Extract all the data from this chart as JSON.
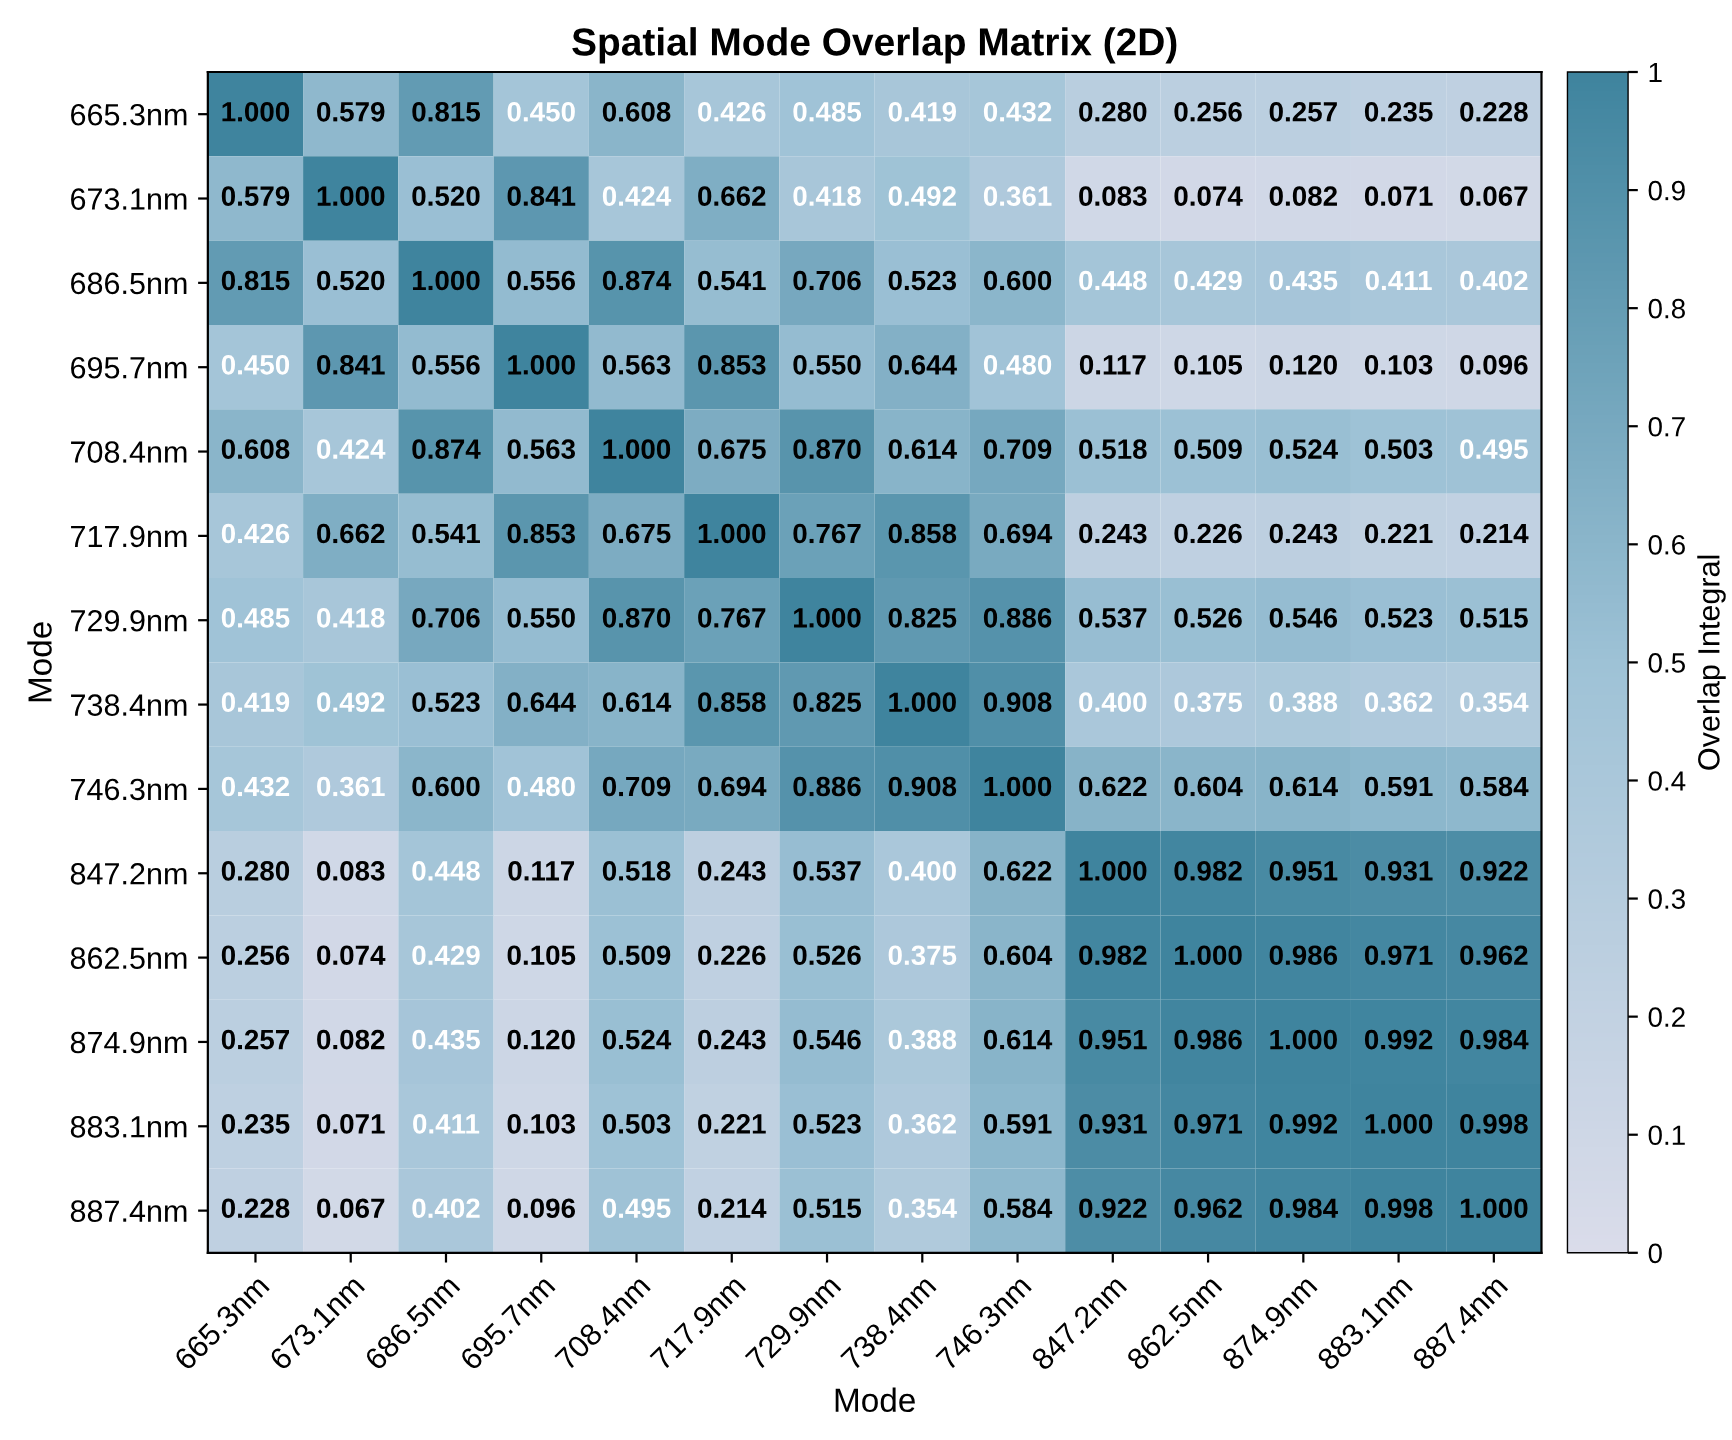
{
  "chart_data": {
    "type": "heatmap",
    "title": "Spatial Mode Overlap Matrix (2D)",
    "xlabel": "Mode",
    "ylabel": "Mode",
    "clabel": "Overlap Integral",
    "categories": [
      "665.3nm",
      "673.1nm",
      "686.5nm",
      "695.7nm",
      "708.4nm",
      "717.9nm",
      "729.9nm",
      "738.4nm",
      "746.3nm",
      "847.2nm",
      "862.5nm",
      "874.9nm",
      "883.1nm",
      "887.4nm"
    ],
    "y_categories": [
      "665.3nm",
      "673.1nm",
      "686.5nm",
      "695.7nm",
      "708.4nm",
      "717.9nm",
      "729.9nm",
      "738.4nm",
      "746.3nm",
      "847.2nm",
      "862.5nm",
      "874.9nm",
      "883.1nm",
      "887.4nm"
    ],
    "cells": [
      [
        1.0,
        0.579,
        0.815,
        0.45,
        0.608,
        0.426,
        0.485,
        0.419,
        0.432,
        0.28,
        0.256,
        0.257,
        0.235,
        0.228
      ],
      [
        0.579,
        1.0,
        0.52,
        0.841,
        0.424,
        0.662,
        0.418,
        0.492,
        0.361,
        0.083,
        0.074,
        0.082,
        0.071,
        0.067
      ],
      [
        0.815,
        0.52,
        1.0,
        0.556,
        0.874,
        0.541,
        0.706,
        0.523,
        0.6,
        0.448,
        0.429,
        0.435,
        0.411,
        0.402
      ],
      [
        0.45,
        0.841,
        0.556,
        1.0,
        0.563,
        0.853,
        0.55,
        0.644,
        0.48,
        0.117,
        0.105,
        0.12,
        0.103,
        0.096
      ],
      [
        0.608,
        0.424,
        0.874,
        0.563,
        1.0,
        0.675,
        0.87,
        0.614,
        0.709,
        0.518,
        0.509,
        0.524,
        0.503,
        0.495
      ],
      [
        0.426,
        0.662,
        0.541,
        0.853,
        0.675,
        1.0,
        0.767,
        0.858,
        0.694,
        0.243,
        0.226,
        0.243,
        0.221,
        0.214
      ],
      [
        0.485,
        0.418,
        0.706,
        0.55,
        0.87,
        0.767,
        1.0,
        0.825,
        0.886,
        0.537,
        0.526,
        0.546,
        0.523,
        0.515
      ],
      [
        0.419,
        0.492,
        0.523,
        0.644,
        0.614,
        0.858,
        0.825,
        1.0,
        0.908,
        0.4,
        0.375,
        0.388,
        0.362,
        0.354
      ],
      [
        0.432,
        0.361,
        0.6,
        0.48,
        0.709,
        0.694,
        0.886,
        0.908,
        1.0,
        0.622,
        0.604,
        0.614,
        0.591,
        0.584
      ],
      [
        0.28,
        0.083,
        0.448,
        0.117,
        0.518,
        0.243,
        0.537,
        0.4,
        0.622,
        1.0,
        0.982,
        0.951,
        0.931,
        0.922
      ],
      [
        0.256,
        0.074,
        0.429,
        0.105,
        0.509,
        0.226,
        0.526,
        0.375,
        0.604,
        0.982,
        1.0,
        0.986,
        0.971,
        0.962
      ],
      [
        0.257,
        0.082,
        0.435,
        0.12,
        0.524,
        0.243,
        0.546,
        0.388,
        0.614,
        0.951,
        0.986,
        1.0,
        0.992,
        0.984
      ],
      [
        0.235,
        0.071,
        0.411,
        0.103,
        0.503,
        0.221,
        0.523,
        0.362,
        0.591,
        0.931,
        0.971,
        0.992,
        1.0,
        0.998
      ],
      [
        0.228,
        0.067,
        0.402,
        0.096,
        0.495,
        0.214,
        0.515,
        0.354,
        0.584,
        0.922,
        0.962,
        0.984,
        0.998,
        1.0
      ]
    ],
    "cell_labels": [
      [
        "1.000",
        "0.579",
        "0.815",
        "0.450",
        "0.608",
        "0.426",
        "0.485",
        "0.419",
        "0.432",
        "0.280",
        "0.256",
        "0.257",
        "0.235",
        "0.228"
      ],
      [
        "0.579",
        "1.000",
        "0.520",
        "0.841",
        "0.424",
        "0.662",
        "0.418",
        "0.492",
        "0.361",
        "0.083",
        "0.074",
        "0.082",
        "0.071",
        "0.067"
      ],
      [
        "0.815",
        "0.520",
        "1.000",
        "0.556",
        "0.874",
        "0.541",
        "0.706",
        "0.523",
        "0.600",
        "0.448",
        "0.429",
        "0.435",
        "0.411",
        "0.402"
      ],
      [
        "0.450",
        "0.841",
        "0.556",
        "1.000",
        "0.563",
        "0.853",
        "0.550",
        "0.644",
        "0.480",
        "0.117",
        "0.105",
        "0.120",
        "0.103",
        "0.096"
      ],
      [
        "0.608",
        "0.424",
        "0.874",
        "0.563",
        "1.000",
        "0.675",
        "0.870",
        "0.614",
        "0.709",
        "0.518",
        "0.509",
        "0.524",
        "0.503",
        "0.495"
      ],
      [
        "0.426",
        "0.662",
        "0.541",
        "0.853",
        "0.675",
        "1.000",
        "0.767",
        "0.858",
        "0.694",
        "0.243",
        "0.226",
        "0.243",
        "0.221",
        "0.214"
      ],
      [
        "0.485",
        "0.418",
        "0.706",
        "0.550",
        "0.870",
        "0.767",
        "1.000",
        "0.825",
        "0.886",
        "0.537",
        "0.526",
        "0.546",
        "0.523",
        "0.515"
      ],
      [
        "0.419",
        "0.492",
        "0.523",
        "0.644",
        "0.614",
        "0.858",
        "0.825",
        "1.000",
        "0.908",
        "0.400",
        "0.375",
        "0.388",
        "0.362",
        "0.354"
      ],
      [
        "0.432",
        "0.361",
        "0.600",
        "0.480",
        "0.709",
        "0.694",
        "0.886",
        "0.908",
        "1.000",
        "0.622",
        "0.604",
        "0.614",
        "0.591",
        "0.584"
      ],
      [
        "0.280",
        "0.083",
        "0.448",
        "0.117",
        "0.518",
        "0.243",
        "0.537",
        "0.400",
        "0.622",
        "1.000",
        "0.982",
        "0.951",
        "0.931",
        "0.922"
      ],
      [
        "0.256",
        "0.074",
        "0.429",
        "0.105",
        "0.509",
        "0.226",
        "0.526",
        "0.375",
        "0.604",
        "0.982",
        "1.000",
        "0.986",
        "0.971",
        "0.962"
      ],
      [
        "0.257",
        "0.082",
        "0.435",
        "0.120",
        "0.524",
        "0.243",
        "0.546",
        "0.388",
        "0.614",
        "0.951",
        "0.986",
        "1.000",
        "0.992",
        "0.984"
      ],
      [
        "0.235",
        "0.071",
        "0.411",
        "0.103",
        "0.503",
        "0.221",
        "0.523",
        "0.362",
        "0.591",
        "0.931",
        "0.971",
        "0.992",
        "1.000",
        "0.998"
      ],
      [
        "0.228",
        "0.067",
        "0.402",
        "0.096",
        "0.495",
        "0.214",
        "0.515",
        "0.354",
        "0.584",
        "0.922",
        "0.962",
        "0.984",
        "0.998",
        "1.000"
      ]
    ],
    "clim": [
      0,
      1
    ],
    "cticks": [
      0,
      0.1,
      0.2,
      0.3,
      0.4,
      0.5,
      0.6,
      0.7,
      0.8,
      0.9,
      1
    ]
  }
}
